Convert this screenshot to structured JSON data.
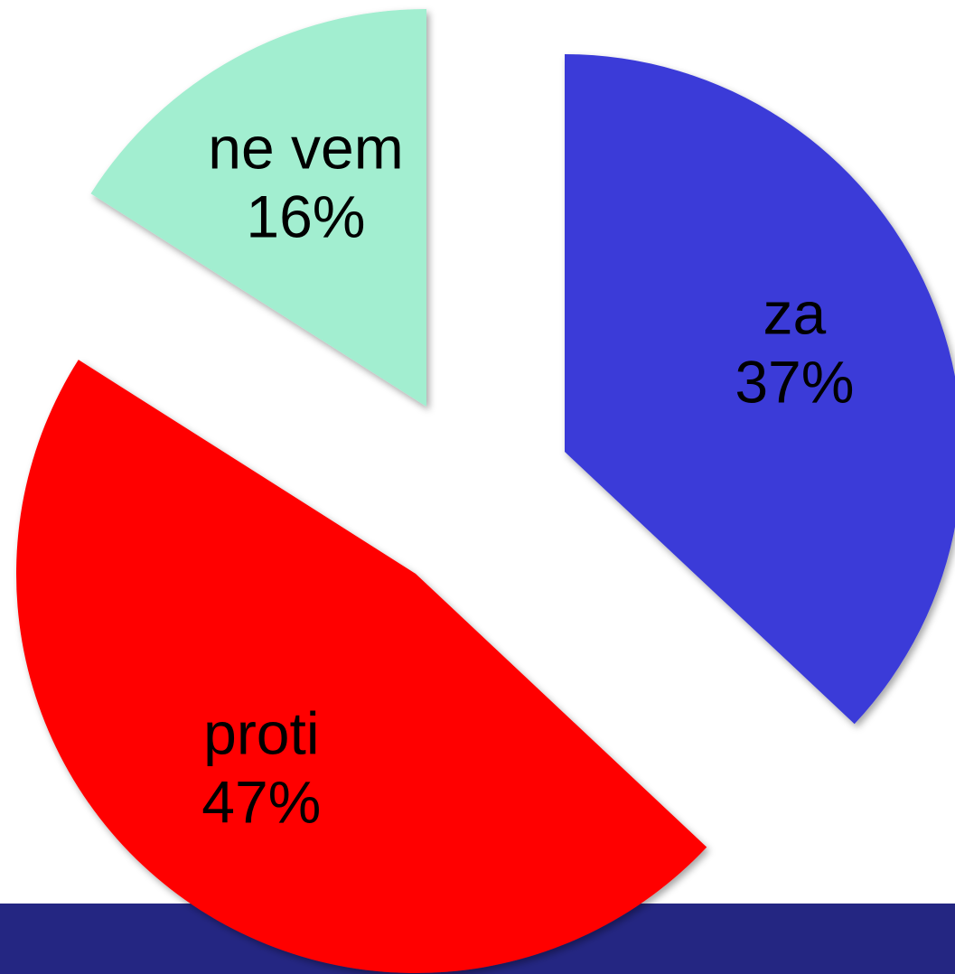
{
  "chart_data": {
    "type": "pie",
    "categories": [
      "za",
      "proti",
      "ne vem"
    ],
    "values": [
      37,
      47,
      16
    ],
    "value_labels": [
      "37%",
      "47%",
      "16%"
    ],
    "colors": [
      "#3b3bd8",
      "#ff0000",
      "#a2eed0"
    ]
  }
}
